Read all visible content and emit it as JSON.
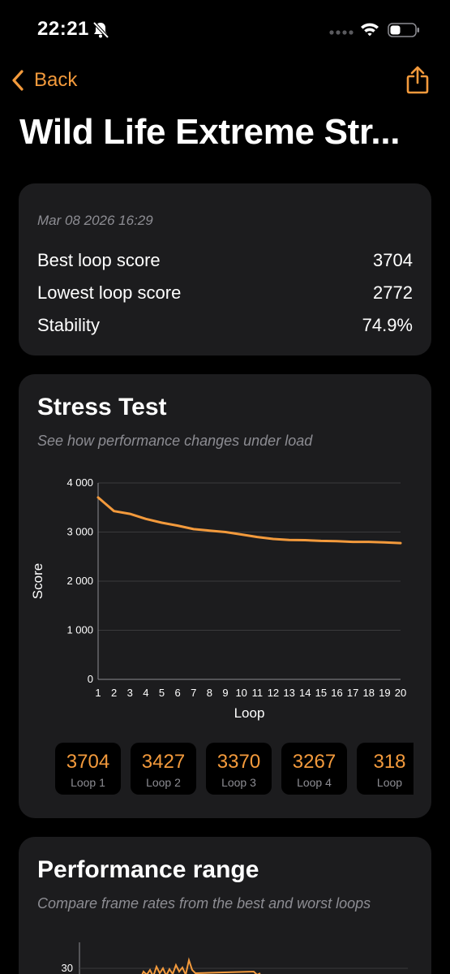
{
  "status_bar": {
    "time": "22:21",
    "icons": [
      "bell-slash-icon",
      "signal-dots-icon",
      "wifi-icon",
      "battery-icon"
    ]
  },
  "nav": {
    "back_label": "Back",
    "share_icon": "share-icon"
  },
  "page_title": "Wild Life Extreme Str...",
  "summary": {
    "date": "Mar 08 2026 16:29",
    "rows": [
      {
        "label": "Best loop score",
        "value": "3704"
      },
      {
        "label": "Lowest loop score",
        "value": "2772"
      },
      {
        "label": "Stability",
        "value": "74.9%"
      }
    ]
  },
  "stress_test": {
    "title": "Stress Test",
    "subtitle": "See how performance changes under load",
    "loops": [
      {
        "score": "3704",
        "name": "Loop 1"
      },
      {
        "score": "3427",
        "name": "Loop 2"
      },
      {
        "score": "3370",
        "name": "Loop 3"
      },
      {
        "score": "3267",
        "name": "Loop 4"
      },
      {
        "score": "318",
        "name": "Loop"
      }
    ]
  },
  "performance_range": {
    "title": "Performance range",
    "subtitle": "Compare frame rates from the best and worst loops",
    "y_tick_visible": "30"
  },
  "colors": {
    "accent": "#f39a3c",
    "card": "#1c1c1e",
    "secondary_text": "#8d8d93",
    "background": "#000000"
  },
  "chart_data": {
    "type": "line",
    "title": "",
    "xlabel": "Loop",
    "ylabel": "Score",
    "x": [
      1,
      2,
      3,
      4,
      5,
      6,
      7,
      8,
      9,
      10,
      11,
      12,
      13,
      14,
      15,
      16,
      17,
      18,
      19,
      20
    ],
    "series": [
      {
        "values": [
          3704,
          3427,
          3370,
          3267,
          3190,
          3130,
          3060,
          3030,
          3000,
          2950,
          2900,
          2860,
          2840,
          2835,
          2820,
          2815,
          2800,
          2800,
          2790,
          2775
        ]
      }
    ],
    "ylim": [
      0,
      4000
    ],
    "yticks": [
      "0",
      "1 000",
      "2 000",
      "3 000",
      "4 000"
    ],
    "xticks": [
      "1",
      "2",
      "3",
      "4",
      "5",
      "6",
      "7",
      "8",
      "9",
      "10",
      "11",
      "12",
      "13",
      "14",
      "15",
      "16",
      "17",
      "18",
      "19",
      "20"
    ],
    "grid": true,
    "line_color": "#f39a3c"
  }
}
